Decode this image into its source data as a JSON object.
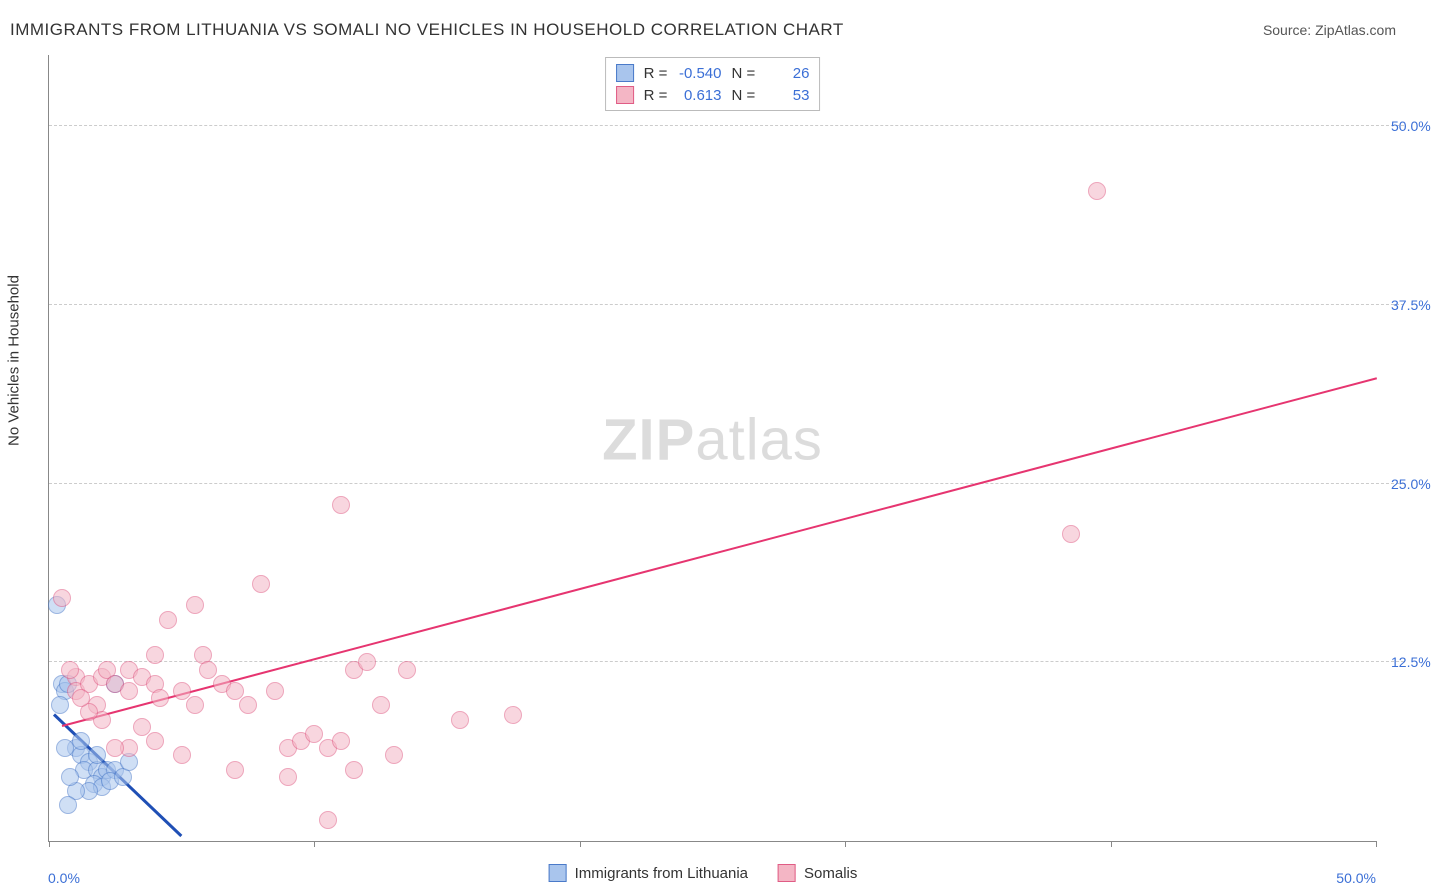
{
  "title": "IMMIGRANTS FROM LITHUANIA VS SOMALI NO VEHICLES IN HOUSEHOLD CORRELATION CHART",
  "source": "Source: ZipAtlas.com",
  "y_axis_title": "No Vehicles in Household",
  "watermark_bold": "ZIP",
  "watermark_rest": "atlas",
  "chart": {
    "type": "scatter-with-regression",
    "x_min": 0,
    "x_max": 50,
    "y_min": 0,
    "y_max": 55,
    "x_tick_step": 10,
    "x_tick_labels_left": "0.0%",
    "x_tick_labels_right": "50.0%",
    "y_ticks": [
      12.5,
      25.0,
      37.5,
      50.0
    ],
    "y_tick_labels": [
      "12.5%",
      "25.0%",
      "37.5%",
      "50.0%"
    ],
    "grid_color": "#cccccc",
    "axis_color": "#888888",
    "label_color": "#3b6fd6",
    "background_color": "#ffffff"
  },
  "series": [
    {
      "name": "Immigrants from Lithuania",
      "fill": "#a9c5ed",
      "fill_opacity": 0.55,
      "stroke": "#4a7ac9",
      "marker_radius": 9,
      "R": "-0.540",
      "N": "26",
      "trend": {
        "x1": 0.2,
        "y1": 9.0,
        "x2": 5.0,
        "y2": 0.5,
        "color": "#1f4fb5",
        "width": 3
      },
      "points": [
        [
          0.3,
          16.5
        ],
        [
          0.5,
          11.0
        ],
        [
          0.6,
          10.5
        ],
        [
          0.7,
          11.0
        ],
        [
          0.4,
          9.5
        ],
        [
          1.0,
          6.5
        ],
        [
          1.2,
          6.0
        ],
        [
          1.5,
          5.5
        ],
        [
          1.3,
          5.0
        ],
        [
          1.8,
          5.0
        ],
        [
          2.0,
          4.5
        ],
        [
          2.2,
          5.0
        ],
        [
          2.5,
          5.0
        ],
        [
          1.7,
          4.0
        ],
        [
          2.0,
          3.8
        ],
        [
          2.3,
          4.2
        ],
        [
          2.8,
          4.5
        ],
        [
          1.5,
          3.5
        ],
        [
          1.0,
          3.5
        ],
        [
          0.8,
          4.5
        ],
        [
          1.2,
          7.0
        ],
        [
          0.6,
          6.5
        ],
        [
          2.5,
          11.0
        ],
        [
          1.8,
          6.0
        ],
        [
          0.7,
          2.5
        ],
        [
          3.0,
          5.5
        ]
      ]
    },
    {
      "name": "Somalis",
      "fill": "#f4b6c5",
      "fill_opacity": 0.55,
      "stroke": "#e05c85",
      "marker_radius": 9,
      "R": "0.613",
      "N": "53",
      "trend": {
        "x1": 0.5,
        "y1": 8.2,
        "x2": 50.0,
        "y2": 32.5,
        "color": "#e63570",
        "width": 2
      },
      "points": [
        [
          0.5,
          17.0
        ],
        [
          1.0,
          11.5
        ],
        [
          1.0,
          10.5
        ],
        [
          1.5,
          11.0
        ],
        [
          1.8,
          9.5
        ],
        [
          2.0,
          11.5
        ],
        [
          2.2,
          12.0
        ],
        [
          2.5,
          11.0
        ],
        [
          3.0,
          10.5
        ],
        [
          3.0,
          12.0
        ],
        [
          3.5,
          11.5
        ],
        [
          4.0,
          11.0
        ],
        [
          4.2,
          10.0
        ],
        [
          4.5,
          15.5
        ],
        [
          5.0,
          10.5
        ],
        [
          5.5,
          9.5
        ],
        [
          5.8,
          13.0
        ],
        [
          6.0,
          12.0
        ],
        [
          6.5,
          11.0
        ],
        [
          7.0,
          10.5
        ],
        [
          7.5,
          9.5
        ],
        [
          8.0,
          18.0
        ],
        [
          8.5,
          10.5
        ],
        [
          9.0,
          6.5
        ],
        [
          9.5,
          7.0
        ],
        [
          10.0,
          7.5
        ],
        [
          10.5,
          6.5
        ],
        [
          11.0,
          7.0
        ],
        [
          11.0,
          23.5
        ],
        [
          11.5,
          12.0
        ],
        [
          12.0,
          12.5
        ],
        [
          12.5,
          9.5
        ],
        [
          13.0,
          6.0
        ],
        [
          13.5,
          12.0
        ],
        [
          9.0,
          4.5
        ],
        [
          7.0,
          5.0
        ],
        [
          5.0,
          6.0
        ],
        [
          4.0,
          13.0
        ],
        [
          3.0,
          6.5
        ],
        [
          2.0,
          8.5
        ],
        [
          5.5,
          16.5
        ],
        [
          10.5,
          1.5
        ],
        [
          15.5,
          8.5
        ],
        [
          17.5,
          8.8
        ],
        [
          11.5,
          5.0
        ],
        [
          3.5,
          8.0
        ],
        [
          4.0,
          7.0
        ],
        [
          2.5,
          6.5
        ],
        [
          1.5,
          9.0
        ],
        [
          38.5,
          21.5
        ],
        [
          39.5,
          45.5
        ],
        [
          0.8,
          12.0
        ],
        [
          1.2,
          10.0
        ]
      ]
    }
  ],
  "legend_top_rows": [
    {
      "swatch_fill": "#a9c5ed",
      "swatch_stroke": "#4a7ac9",
      "R_label": "R =",
      "R_val": "-0.540",
      "N_label": "N =",
      "N_val": "26"
    },
    {
      "swatch_fill": "#f4b6c5",
      "swatch_stroke": "#e05c85",
      "R_label": "R =",
      "R_val": "0.613",
      "N_label": "N =",
      "N_val": "53"
    }
  ],
  "legend_bottom": [
    {
      "swatch_fill": "#a9c5ed",
      "swatch_stroke": "#4a7ac9",
      "label": "Immigrants from Lithuania"
    },
    {
      "swatch_fill": "#f4b6c5",
      "swatch_stroke": "#e05c85",
      "label": "Somalis"
    }
  ]
}
